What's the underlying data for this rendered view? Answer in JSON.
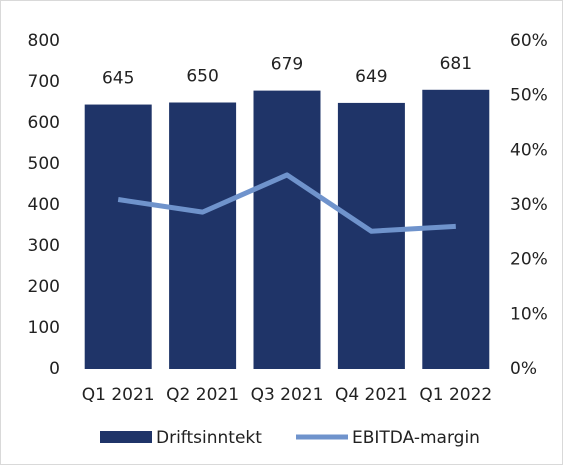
{
  "chart_data": {
    "type": "bar",
    "categories": [
      "Q1 2021",
      "Q2 2021",
      "Q3 2021",
      "Q4 2021",
      "Q1 2022"
    ],
    "series": [
      {
        "name": "Driftsinntekt",
        "color": "#1f3468",
        "values": [
          645,
          650,
          679,
          649,
          681
        ],
        "data_labels": true
      },
      {
        "name": "EBITDA-margin",
        "color": "#6f93cc",
        "type": "line",
        "axis": "y2",
        "values": [
          31,
          28.7,
          35.5,
          25.2,
          26.1
        ]
      }
    ],
    "ylim": [
      0,
      800
    ],
    "yticks": [
      0,
      100,
      200,
      300,
      400,
      500,
      600,
      700,
      800
    ],
    "y2lim": [
      0,
      60
    ],
    "y2ticks": [
      {
        "value": 0,
        "label": "0%"
      },
      {
        "value": 10,
        "label": "10%"
      },
      {
        "value": 20,
        "label": "20%"
      },
      {
        "value": 30,
        "label": "30%"
      },
      {
        "value": 40,
        "label": "40%"
      },
      {
        "value": 50,
        "label": "50%"
      },
      {
        "value": 60,
        "label": "60%"
      }
    ],
    "grid": false,
    "legend": "bottom"
  }
}
